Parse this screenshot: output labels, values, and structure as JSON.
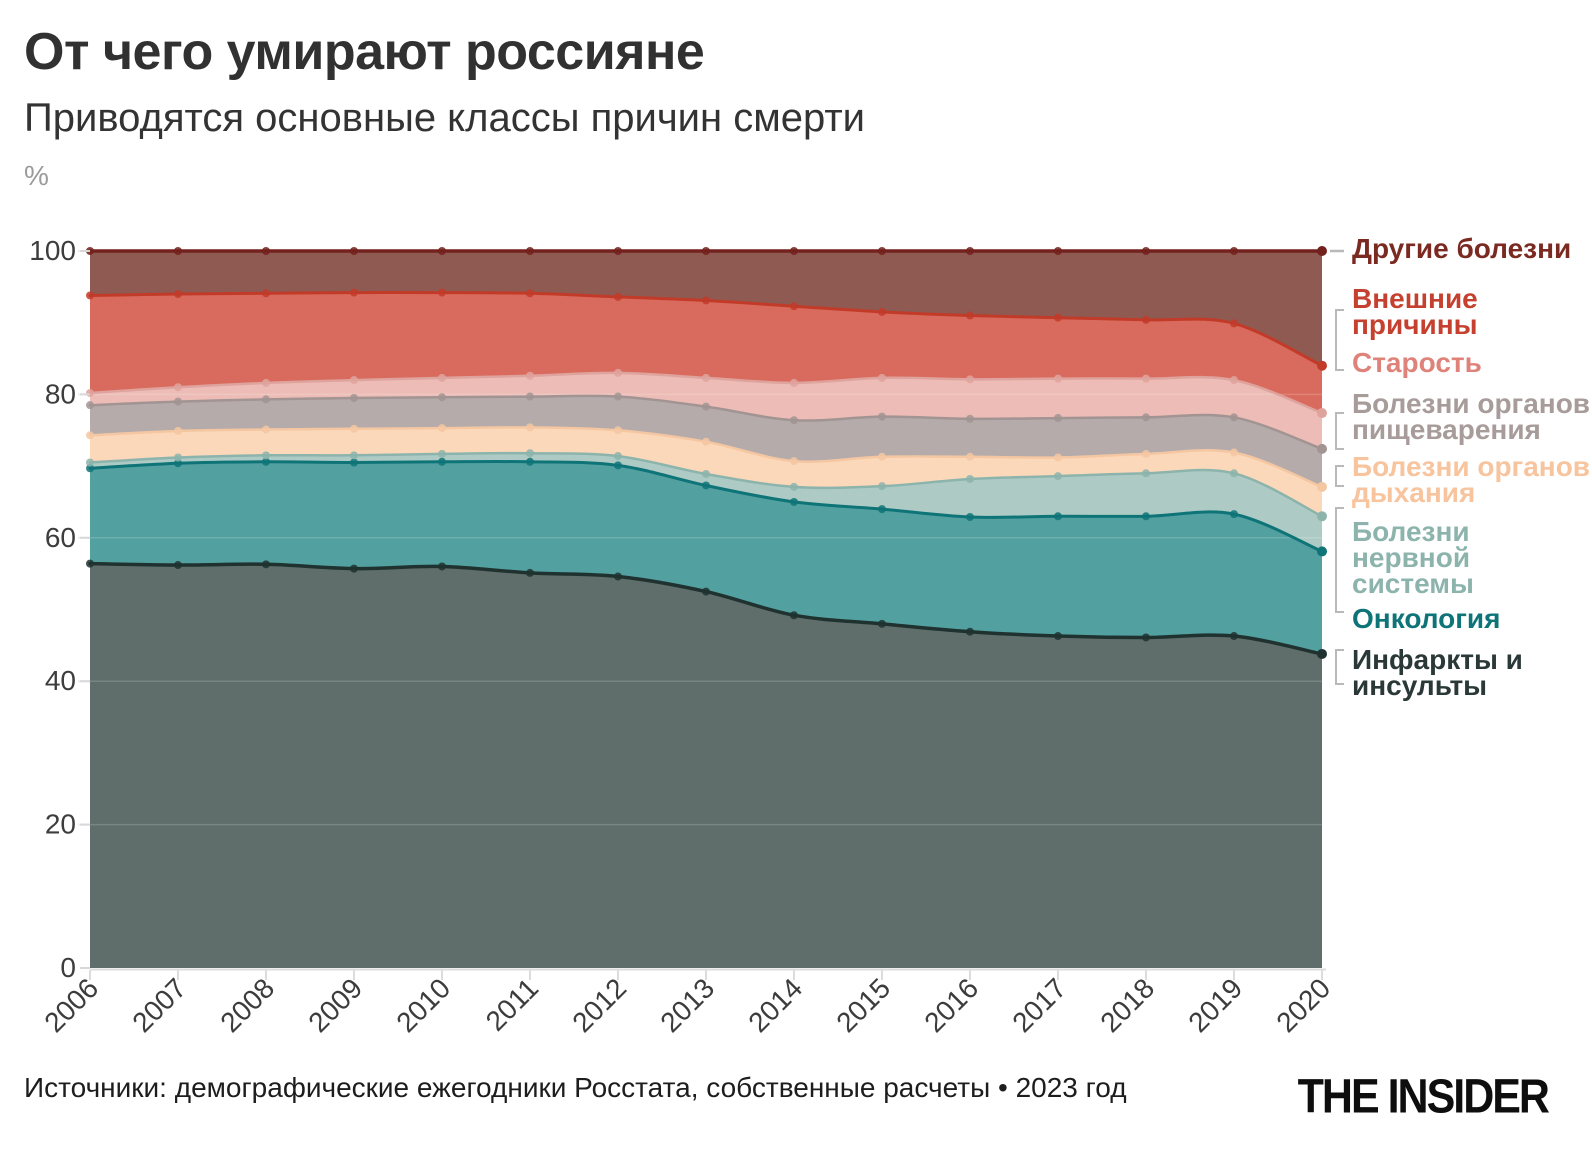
{
  "header": {
    "title": "От чего умирают россияне",
    "subtitle": "Приводятся основные классы причин смерти",
    "unit_label": "%"
  },
  "chart_data": {
    "type": "area",
    "stacked": true,
    "title": "От чего умирают россияне",
    "xlabel": "",
    "ylabel": "%",
    "ylim": [
      0,
      100
    ],
    "yticks": [
      0,
      20,
      40,
      60,
      80,
      100
    ],
    "grid": true,
    "legend_position": "right",
    "x": [
      "2006",
      "2007",
      "2008",
      "2009",
      "2010",
      "2011",
      "2012",
      "2013",
      "2014",
      "2015",
      "2016",
      "2017",
      "2018",
      "2019",
      "2020"
    ],
    "series": [
      {
        "id": "infarct",
        "name": "Инфаркты и инсульты",
        "fill": "#5F6E6A",
        "stroke": "#1F3230",
        "legend_color": "#2A3937",
        "values": [
          56.4,
          56.2,
          56.3,
          55.7,
          56.0,
          55.1,
          54.6,
          52.5,
          49.2,
          48.0,
          46.9,
          46.3,
          46.1,
          46.3,
          43.8
        ]
      },
      {
        "id": "oncology",
        "name": "Онкология",
        "fill": "#52A0A0",
        "stroke": "#0F7478",
        "legend_color": "#0F7478",
        "values": [
          13.3,
          14.2,
          14.3,
          14.8,
          14.6,
          15.5,
          15.5,
          14.8,
          15.8,
          16.0,
          16.0,
          16.7,
          16.9,
          17.0,
          14.3
        ]
      },
      {
        "id": "nervous",
        "name": "Болезни нервной системы",
        "fill": "#ADCBC4",
        "stroke": "#8CB4AC",
        "legend_color": "#8CB4AC",
        "values": [
          0.8,
          0.8,
          0.9,
          1.0,
          1.1,
          1.2,
          1.3,
          1.6,
          2.1,
          3.2,
          5.3,
          5.6,
          6.0,
          5.7,
          4.9
        ]
      },
      {
        "id": "respiratory",
        "name": "Болезни органов дыхания",
        "fill": "#FBD8B9",
        "stroke": "#F4C7A2",
        "legend_color": "#F7C49E",
        "values": [
          3.8,
          3.7,
          3.6,
          3.7,
          3.6,
          3.6,
          3.6,
          4.5,
          3.6,
          4.1,
          3.1,
          2.6,
          2.7,
          2.9,
          4.1
        ]
      },
      {
        "id": "digestive",
        "name": "Болезни органов пищеварения",
        "fill": "#B5ABAA",
        "stroke": "#A19493",
        "legend_color": "#A89C9A",
        "values": [
          4.2,
          4.1,
          4.2,
          4.3,
          4.3,
          4.3,
          4.7,
          4.9,
          5.7,
          5.6,
          5.3,
          5.5,
          5.1,
          4.9,
          5.3
        ]
      },
      {
        "id": "oldage",
        "name": "Старость",
        "fill": "#EDBCB6",
        "stroke": "#DFA39D",
        "legend_color": "#DF837A",
        "values": [
          1.7,
          2.0,
          2.3,
          2.5,
          2.7,
          2.9,
          3.3,
          4.0,
          5.2,
          5.4,
          5.5,
          5.5,
          5.4,
          5.2,
          5.0
        ]
      },
      {
        "id": "external",
        "name": "Внешние причины",
        "fill": "#D96B5E",
        "stroke": "#C23B29",
        "legend_color": "#C5402E",
        "values": [
          13.6,
          13.0,
          12.5,
          12.2,
          11.9,
          11.5,
          10.6,
          10.8,
          10.7,
          9.2,
          8.9,
          8.5,
          8.2,
          7.9,
          6.6
        ]
      },
      {
        "id": "other",
        "name": "Другие болезни",
        "fill": "#8E5A52",
        "stroke": "#73211C",
        "legend_color": "#7B2A22",
        "values": [
          6.2,
          6.0,
          5.9,
          5.8,
          5.8,
          5.9,
          6.4,
          6.9,
          7.7,
          8.5,
          9.0,
          9.3,
          9.6,
          10.1,
          16.0
        ]
      }
    ]
  },
  "legend": {
    "items": [
      {
        "id": "other",
        "label": "Другие болезни"
      },
      {
        "id": "external",
        "label": "Внешние\nпричины"
      },
      {
        "id": "oldage",
        "label": "Старость"
      },
      {
        "id": "digestive",
        "label": "Болезни органов\nпищеварения"
      },
      {
        "id": "respiratory",
        "label": "Болезни органов\nдыхания"
      },
      {
        "id": "nervous",
        "label": "Болезни\nнервной\nсистемы"
      },
      {
        "id": "oncology",
        "label": "Онкология"
      },
      {
        "id": "infarct",
        "label": "Инфаркты и\nинсульты"
      }
    ]
  },
  "footer": {
    "source": "Источники: демографические ежегодники Росстата, собственные расчеты • 2023 год",
    "logo": "THE INSIDER"
  }
}
